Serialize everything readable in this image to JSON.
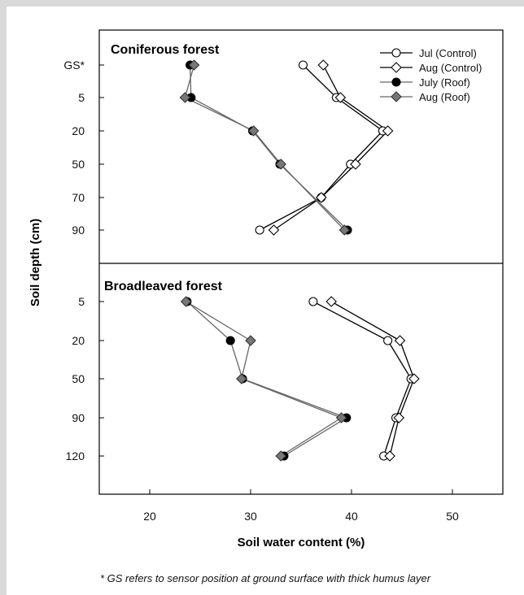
{
  "chart_data": {
    "type": "line",
    "orientation": "vertical-profile",
    "xlabel": "Soil water content (%)",
    "ylabel": "Soil depth (cm)",
    "xlim": [
      15,
      55
    ],
    "xticks": [
      20,
      30,
      40,
      50
    ],
    "footnote": "* GS refers to sensor position at ground surface with thick humus layer",
    "legend": {
      "placement": "top-right",
      "entries": [
        {
          "label": "Jul (Control)",
          "marker": "circle",
          "fill": "#ffffff",
          "line": "#000000"
        },
        {
          "label": "Aug (Control)",
          "marker": "diamond",
          "fill": "#ffffff",
          "line": "#000000"
        },
        {
          "label": "July (Roof)",
          "marker": "circle",
          "fill": "#000000",
          "line": "#666666"
        },
        {
          "label": "Aug (Roof)",
          "marker": "diamond",
          "fill": "#777777",
          "line": "#666666"
        }
      ]
    },
    "panels": [
      {
        "title": "Coniferous forest",
        "depths": [
          "GS*",
          "5",
          "20",
          "50",
          "70",
          "90"
        ],
        "series": [
          {
            "name": "Jul (Control)",
            "values": [
              35.2,
              38.5,
              43.1,
              39.9,
              37.0,
              30.9
            ]
          },
          {
            "name": "Aug (Control)",
            "values": [
              37.2,
              38.9,
              43.6,
              40.4,
              37.0,
              32.3
            ]
          },
          {
            "name": "July (Roof)",
            "values": [
              24.0,
              24.1,
              30.2,
              32.9,
              null,
              39.6
            ]
          },
          {
            "name": "Aug (Roof)",
            "values": [
              24.4,
              23.5,
              30.3,
              33.0,
              null,
              39.3
            ]
          }
        ]
      },
      {
        "title": "Broadleaved forest",
        "depths": [
          "5",
          "20",
          "50",
          "90",
          "120"
        ],
        "series": [
          {
            "name": "Jul (Control)",
            "values": [
              36.2,
              43.6,
              45.9,
              44.4,
              43.2
            ]
          },
          {
            "name": "Aug (Control)",
            "values": [
              38.0,
              44.8,
              46.2,
              44.7,
              43.8
            ]
          },
          {
            "name": "July (Roof)",
            "values": [
              23.7,
              28.0,
              29.2,
              39.5,
              33.3
            ]
          },
          {
            "name": "Aug (Roof)",
            "values": [
              23.6,
              30.0,
              29.1,
              39.0,
              33.0
            ]
          }
        ]
      }
    ]
  }
}
